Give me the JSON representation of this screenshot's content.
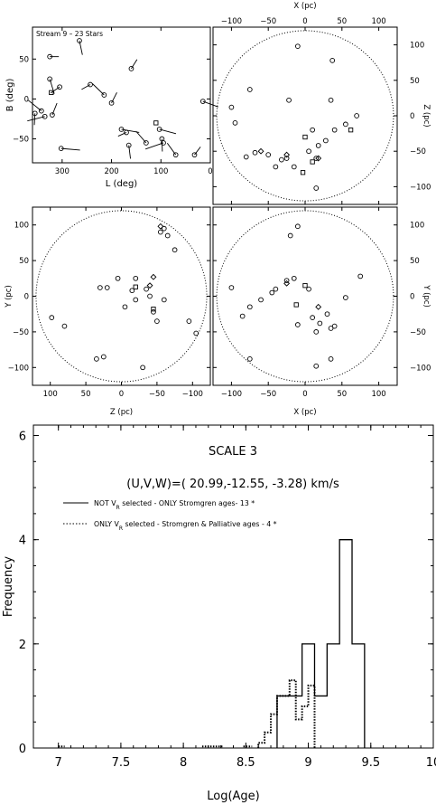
{
  "chart_data": [
    {
      "type": "scatter",
      "panel": "sky",
      "legend": "Stream 9 – 23 Stars",
      "xlabel": "L (deg)",
      "ylabel": "B (deg)",
      "xlim": [
        360,
        0
      ],
      "ylim": [
        -80,
        90
      ],
      "xticks": [
        300,
        200,
        100,
        0
      ],
      "yticks": [
        50,
        0,
        -50
      ],
      "circles": [
        [
          325,
          53
        ],
        [
          325,
          25
        ],
        [
          305,
          15
        ],
        [
          342,
          -15
        ],
        [
          320,
          -20
        ],
        [
          302,
          -62
        ],
        [
          265,
          73
        ],
        [
          243,
          18
        ],
        [
          215,
          5
        ],
        [
          200,
          -5
        ],
        [
          180,
          -38
        ],
        [
          165,
          -58
        ],
        [
          170,
          -42
        ],
        [
          130,
          -55
        ],
        [
          160,
          38
        ],
        [
          103,
          -38
        ],
        [
          98,
          -50
        ],
        [
          95,
          -55
        ],
        [
          70,
          -70
        ],
        [
          32,
          -70
        ],
        [
          15,
          -3
        ],
        [
          355,
          -18
        ],
        [
          335,
          -22
        ]
      ],
      "squares": [
        [
          110,
          -30
        ],
        [
          322,
          8
        ]
      ]
    },
    {
      "type": "scatter",
      "panel": "xz",
      "xlabel": "X (pc)",
      "ylabel": "Z (pc)",
      "xlim": [
        -125,
        125
      ],
      "ylim": [
        -125,
        125
      ],
      "xticks": [
        -100,
        -50,
        0,
        50,
        100
      ],
      "yticks": [
        100,
        50,
        0,
        -50,
        -100
      ],
      "circle_radius": 120,
      "circles": [
        [
          -10,
          98
        ],
        [
          37,
          78
        ],
        [
          35,
          22
        ],
        [
          -22,
          22
        ],
        [
          -100,
          12
        ],
        [
          -75,
          37
        ],
        [
          -95,
          -10
        ],
        [
          -80,
          -58
        ],
        [
          -68,
          -52
        ],
        [
          -50,
          -55
        ],
        [
          -40,
          -72
        ],
        [
          -32,
          -62
        ],
        [
          -25,
          -60
        ],
        [
          -15,
          -72
        ],
        [
          10,
          -20
        ],
        [
          15,
          -60
        ],
        [
          18,
          -42
        ],
        [
          28,
          -35
        ],
        [
          55,
          -12
        ],
        [
          70,
          0
        ],
        [
          40,
          -20
        ],
        [
          15,
          -102
        ],
        [
          5,
          -50
        ]
      ],
      "diamonds": [
        [
          -60,
          -50
        ],
        [
          -25,
          -55
        ],
        [
          18,
          -60
        ]
      ],
      "squares": [
        [
          0,
          -30
        ],
        [
          -3,
          -80
        ],
        [
          10,
          -65
        ],
        [
          62,
          -20
        ]
      ]
    },
    {
      "type": "scatter",
      "panel": "zy",
      "xlabel": "Z (pc)",
      "ylabel": "Y (pc)",
      "xlim": [
        125,
        -125
      ],
      "ylim": [
        -125,
        125
      ],
      "xticks": [
        100,
        50,
        0,
        -50,
        -100
      ],
      "yticks": [
        100,
        50,
        0,
        -50,
        -100
      ],
      "circle_radius": 120,
      "circles": [
        [
          98,
          -30
        ],
        [
          80,
          -42
        ],
        [
          35,
          -88
        ],
        [
          25,
          -85
        ],
        [
          -30,
          -100
        ],
        [
          -105,
          -52
        ],
        [
          -95,
          -35
        ],
        [
          -50,
          -35
        ],
        [
          -45,
          -22
        ],
        [
          -20,
          -5
        ],
        [
          -15,
          8
        ],
        [
          -35,
          10
        ],
        [
          -40,
          0
        ],
        [
          -60,
          -5
        ],
        [
          -75,
          65
        ],
        [
          -65,
          85
        ],
        [
          -55,
          90
        ],
        [
          -60,
          95
        ],
        [
          5,
          25
        ],
        [
          -20,
          25
        ],
        [
          20,
          12
        ],
        [
          30,
          12
        ],
        [
          -5,
          -15
        ]
      ],
      "diamonds": [
        [
          -55,
          98
        ],
        [
          -45,
          27
        ],
        [
          -40,
          15
        ]
      ],
      "squares": [
        [
          -20,
          13
        ],
        [
          -45,
          -18
        ]
      ]
    },
    {
      "type": "scatter",
      "panel": "xy",
      "xlabel": "X (pc)",
      "ylabel": "Y (pc)",
      "xlim": [
        -125,
        125
      ],
      "ylim": [
        -125,
        125
      ],
      "xticks": [
        -100,
        -50,
        0,
        50,
        100
      ],
      "yticks": [
        100,
        50,
        0,
        -50,
        -100
      ],
      "circle_radius": 120,
      "circles": [
        [
          -100,
          12
        ],
        [
          -85,
          -28
        ],
        [
          -75,
          -15
        ],
        [
          -60,
          -5
        ],
        [
          -45,
          5
        ],
        [
          -40,
          10
        ],
        [
          -25,
          22
        ],
        [
          -15,
          25
        ],
        [
          -10,
          98
        ],
        [
          -20,
          85
        ],
        [
          -75,
          -88
        ],
        [
          10,
          -30
        ],
        [
          15,
          -50
        ],
        [
          20,
          -38
        ],
        [
          30,
          -25
        ],
        [
          35,
          -45
        ],
        [
          40,
          -42
        ],
        [
          55,
          -2
        ],
        [
          75,
          28
        ],
        [
          15,
          -98
        ],
        [
          5,
          10
        ],
        [
          -10,
          -40
        ],
        [
          35,
          -88
        ]
      ],
      "diamonds": [
        [
          -25,
          18
        ],
        [
          18,
          -15
        ]
      ],
      "squares": [
        [
          0,
          15
        ],
        [
          -12,
          -12
        ]
      ]
    },
    {
      "type": "histogram",
      "panel": "age",
      "title": "SCALE 3",
      "subtitle": "(U,V,W)=( 20.99,-12.55, -3.28) km/s",
      "xlabel": "Log(Age)",
      "ylabel": "Frequency",
      "xlim": [
        6.8,
        10
      ],
      "ylim": [
        0,
        6.2
      ],
      "xticks": [
        7,
        7.5,
        8,
        8.5,
        9,
        9.5,
        10
      ],
      "yticks": [
        0,
        2,
        4,
        6
      ],
      "bin_edges": [
        8.75,
        8.85,
        8.95,
        9.05,
        9.15,
        9.25,
        9.35,
        9.45
      ],
      "series": [
        {
          "name": "NOT V_R selected - ONLY Stromgren ages- 13 *",
          "style": "solid",
          "values": [
            1,
            1,
            2,
            1,
            2,
            4,
            2
          ]
        },
        {
          "name": "ONLY V_R selected - Stromgren & Palliative ages -  4 *",
          "style": "dotted",
          "bin_edges": [
            8.6,
            8.65,
            8.7,
            8.75,
            8.85,
            8.9,
            8.95,
            9.0,
            9.05
          ],
          "values": [
            0.1,
            0.3,
            0.65,
            1,
            1.3,
            0.55,
            0.8,
            1.2
          ]
        }
      ]
    }
  ],
  "legend_lines": [
    {
      "pre": "NOT V",
      "sub": "R",
      "post": " selected - ONLY Stromgren ages- 13 *"
    },
    {
      "pre": "ONLY V",
      "sub": "R",
      "post": " selected - Stromgren & Palliative ages -  4 *"
    }
  ]
}
